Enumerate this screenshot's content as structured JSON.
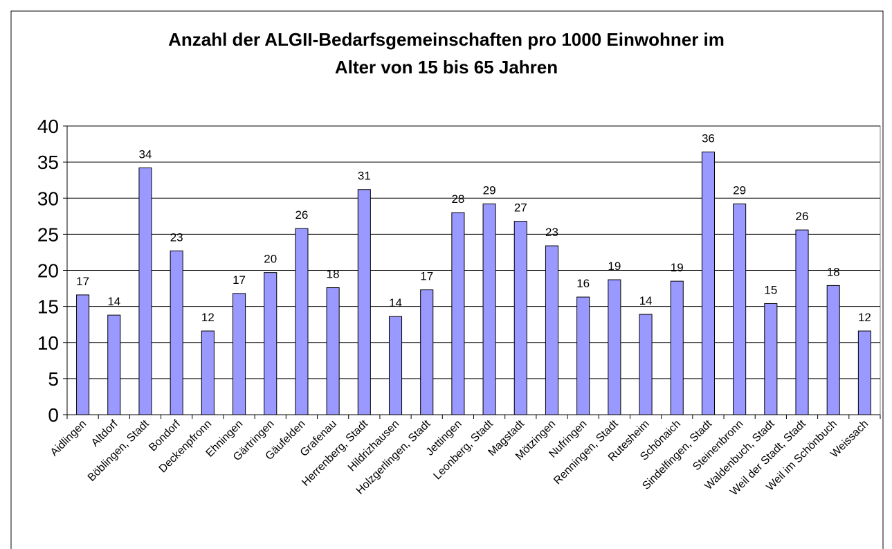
{
  "chart_data": {
    "type": "bar",
    "title": [
      "Anzahl der ALGII-Bedarfsgemeinschaften pro 1000 Einwohner im",
      "Alter von 15 bis 65 Jahren"
    ],
    "categories": [
      "Aidlingen",
      "Altdorf",
      "Böblingen, Stadt",
      "Bondorf",
      "Deckenpfronn",
      "Ehningen",
      "Gärtringen",
      "Gäufelden",
      "Grafenau",
      "Herrenberg, Stadt",
      "Hildrizhausen",
      "Holzgerlingen, Stadt",
      "Jettingen",
      "Leonberg, Stadt",
      "Magstadt",
      "Mötzingen",
      "Nufringen",
      "Renningen, Stadt",
      "Rutesheim",
      "Schönaich",
      "Sindelfingen, Stadt",
      "Steinenbronn",
      "Waldenbuch, Stadt",
      "Weil der Stadt, Stadt",
      "Weil im Schönbuch",
      "Weissach"
    ],
    "values": [
      16.6,
      13.8,
      34.2,
      22.7,
      11.6,
      16.8,
      19.7,
      25.8,
      17.6,
      31.2,
      13.6,
      17.3,
      28.0,
      29.2,
      26.8,
      23.4,
      16.3,
      18.7,
      13.9,
      18.5,
      36.4,
      29.2,
      15.4,
      25.6,
      17.9,
      11.6
    ],
    "value_labels": [
      "17",
      "14",
      "34",
      "23",
      "12",
      "17",
      "20",
      "26",
      "18",
      "31",
      "14",
      "17",
      "28",
      "29",
      "27",
      "23",
      "16",
      "19",
      "14",
      "19",
      "36",
      "29",
      "15",
      "26",
      "18",
      "12"
    ],
    "color": "#9999ff",
    "ylim": [
      0,
      40
    ],
    "yticks": [
      0,
      5,
      10,
      15,
      20,
      25,
      30,
      35,
      40
    ],
    "grid": true
  }
}
